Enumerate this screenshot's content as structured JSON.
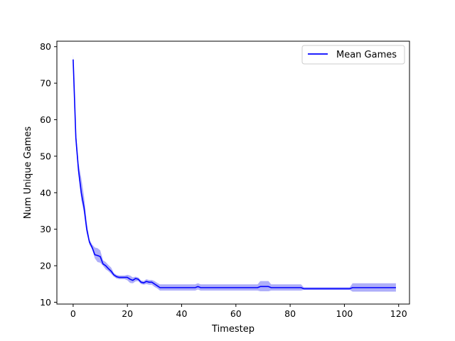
{
  "chart_data": {
    "type": "line",
    "xlabel": "Timestep",
    "ylabel": "Num Unique Games",
    "xlim": [
      -6,
      124
    ],
    "ylim": [
      9.5,
      81.5
    ],
    "x_ticks": [
      0,
      20,
      40,
      60,
      80,
      100,
      120
    ],
    "y_ticks": [
      10,
      20,
      30,
      40,
      50,
      60,
      70,
      80
    ],
    "grid": false,
    "legend": "top-right",
    "colors": {
      "line": "#0000ff",
      "band": "#7d7df5",
      "axes": "#000000"
    },
    "series": [
      {
        "name": "Mean Games",
        "x": [
          0,
          1,
          2,
          3,
          4,
          5,
          6,
          7,
          8,
          9,
          10,
          11,
          12,
          13,
          14,
          15,
          16,
          17,
          18,
          19,
          20,
          21,
          22,
          23,
          24,
          25,
          26,
          27,
          28,
          29,
          30,
          31,
          32,
          33,
          35,
          40,
          45,
          46,
          47,
          50,
          60,
          68,
          69,
          70,
          71,
          72,
          73,
          80,
          84,
          85,
          90,
          100,
          102,
          103,
          110,
          119
        ],
        "mean": [
          76.5,
          55,
          46,
          40,
          36,
          30,
          26.5,
          25,
          23,
          22.8,
          22.5,
          20.5,
          20,
          19.2,
          18.5,
          17.5,
          17,
          16.8,
          16.8,
          16.8,
          16.8,
          16.3,
          16,
          16.5,
          16.3,
          15.5,
          15.3,
          15.7,
          15.5,
          15.5,
          15,
          14.5,
          14,
          14,
          14,
          14,
          14,
          14.3,
          14,
          14,
          14,
          14,
          14.3,
          14.3,
          14.3,
          14.3,
          14,
          14,
          14,
          13.7,
          13.7,
          13.7,
          13.7,
          14,
          14,
          14
        ],
        "lower": [
          75,
          53,
          44.5,
          38,
          34.5,
          29,
          25.8,
          24.5,
          22,
          21,
          20.8,
          20,
          19,
          18.5,
          17.8,
          17,
          16.5,
          16.3,
          16.3,
          16.3,
          16,
          15.3,
          15.2,
          15.7,
          15.8,
          15,
          14.8,
          15,
          14.8,
          14.8,
          14.2,
          13.8,
          13.2,
          13.2,
          13.2,
          13.2,
          13.2,
          13.5,
          13.2,
          13.2,
          13.2,
          13.2,
          13,
          13,
          13,
          13,
          13.2,
          13.2,
          13.2,
          13.4,
          13.4,
          13.4,
          13.4,
          12.9,
          12.9,
          12.9
        ],
        "upper": [
          78,
          57,
          48,
          44,
          39,
          32,
          27.2,
          25.8,
          25,
          24.8,
          24.2,
          21.5,
          21,
          20.2,
          19.5,
          18,
          17.5,
          17.3,
          17.3,
          17.3,
          17.5,
          17.3,
          16.8,
          17,
          16.8,
          16,
          15.8,
          16.3,
          16.1,
          16.1,
          15.8,
          15.3,
          14.9,
          14.9,
          14.9,
          14.9,
          14.9,
          15.2,
          14.9,
          14.9,
          14.9,
          14.9,
          15.8,
          15.8,
          15.8,
          15.8,
          14.9,
          14.9,
          14.9,
          14.1,
          14.1,
          14.1,
          14.1,
          15.2,
          15.2,
          15.2
        ]
      }
    ]
  }
}
